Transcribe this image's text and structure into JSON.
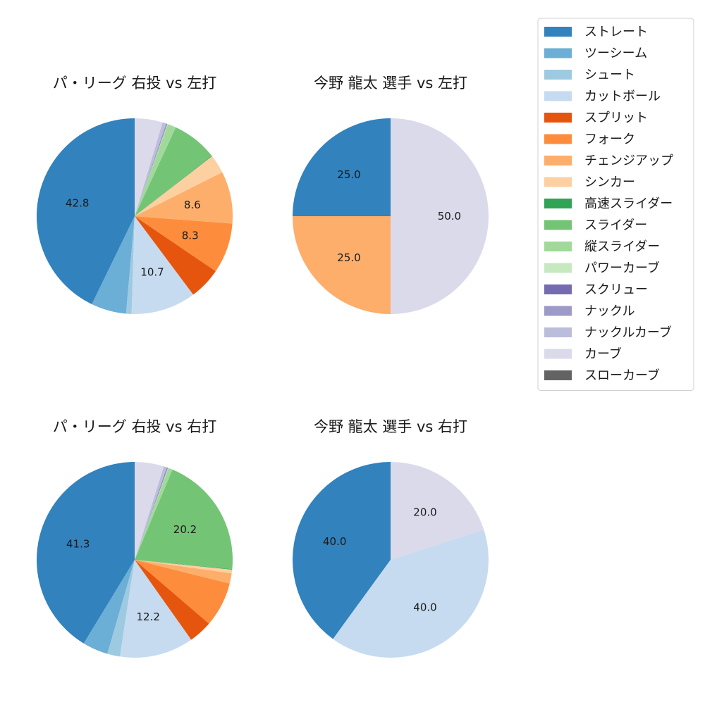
{
  "chart_data": [
    {
      "type": "pie",
      "title": "パ・リーグ 右投 vs 左打",
      "slices": [
        {
          "name": "ストレート",
          "value": 42.8,
          "label": "42.8"
        },
        {
          "name": "ツーシーム",
          "value": 5.8,
          "label": ""
        },
        {
          "name": "シュート",
          "value": 0.9,
          "label": ""
        },
        {
          "name": "カットボール",
          "value": 10.7,
          "label": "10.7"
        },
        {
          "name": "スプリット",
          "value": 5.3,
          "label": ""
        },
        {
          "name": "フォーク",
          "value": 8.3,
          "label": "8.3"
        },
        {
          "name": "チェンジアップ",
          "value": 8.6,
          "label": "8.6"
        },
        {
          "name": "シンカー",
          "value": 3.1,
          "label": ""
        },
        {
          "name": "高速スライダー",
          "value": 0.1,
          "label": ""
        },
        {
          "name": "スライダー",
          "value": 7.5,
          "label": ""
        },
        {
          "name": "縦スライダー",
          "value": 1.4,
          "label": ""
        },
        {
          "name": "パワーカーブ",
          "value": 0.1,
          "label": ""
        },
        {
          "name": "スクリュー",
          "value": 0.1,
          "label": ""
        },
        {
          "name": "ナックル",
          "value": 0.1,
          "label": ""
        },
        {
          "name": "ナックルカーブ",
          "value": 0.6,
          "label": ""
        },
        {
          "name": "カーブ",
          "value": 4.6,
          "label": ""
        }
      ]
    },
    {
      "type": "pie",
      "title": "今野 龍太 選手 vs 左打",
      "slices": [
        {
          "name": "ストレート",
          "value": 25.0,
          "label": "25.0"
        },
        {
          "name": "チェンジアップ",
          "value": 25.0,
          "label": "25.0"
        },
        {
          "name": "カーブ",
          "value": 50.0,
          "label": "50.0"
        }
      ]
    },
    {
      "type": "pie",
      "title": "パ・リーグ 右投 vs 右打",
      "slices": [
        {
          "name": "ストレート",
          "value": 41.3,
          "label": "41.3"
        },
        {
          "name": "ツーシーム",
          "value": 4.2,
          "label": ""
        },
        {
          "name": "シュート",
          "value": 2.1,
          "label": ""
        },
        {
          "name": "カットボール",
          "value": 12.2,
          "label": "12.2"
        },
        {
          "name": "スプリット",
          "value": 3.9,
          "label": ""
        },
        {
          "name": "フォーク",
          "value": 7.4,
          "label": ""
        },
        {
          "name": "チェンジアップ",
          "value": 1.7,
          "label": ""
        },
        {
          "name": "シンカー",
          "value": 0.6,
          "label": ""
        },
        {
          "name": "高速スライダー",
          "value": 0.1,
          "label": ""
        },
        {
          "name": "スライダー",
          "value": 20.2,
          "label": "20.2"
        },
        {
          "name": "縦スライダー",
          "value": 0.7,
          "label": ""
        },
        {
          "name": "パワーカーブ",
          "value": 0.1,
          "label": ""
        },
        {
          "name": "スクリュー",
          "value": 0.1,
          "label": ""
        },
        {
          "name": "ナックル",
          "value": 0.1,
          "label": ""
        },
        {
          "name": "ナックルカーブ",
          "value": 0.5,
          "label": ""
        },
        {
          "name": "カーブ",
          "value": 4.8,
          "label": ""
        }
      ]
    },
    {
      "type": "pie",
      "title": "今野 龍太 選手 vs 右打",
      "slices": [
        {
          "name": "ストレート",
          "value": 40.0,
          "label": "40.0"
        },
        {
          "name": "カットボール",
          "value": 40.0,
          "label": "40.0"
        },
        {
          "name": "カーブ",
          "value": 20.0,
          "label": "20.0"
        }
      ]
    }
  ],
  "legend": {
    "placement": "top-right",
    "entries": [
      {
        "name": "ストレート",
        "color": "#3182bd"
      },
      {
        "name": "ツーシーム",
        "color": "#6baed6"
      },
      {
        "name": "シュート",
        "color": "#9ecae1"
      },
      {
        "name": "カットボール",
        "color": "#c6dbef"
      },
      {
        "name": "スプリット",
        "color": "#e6550d"
      },
      {
        "name": "フォーク",
        "color": "#fd8d3c"
      },
      {
        "name": "チェンジアップ",
        "color": "#fdae6b"
      },
      {
        "name": "シンカー",
        "color": "#fdd0a2"
      },
      {
        "name": "高速スライダー",
        "color": "#31a354"
      },
      {
        "name": "スライダー",
        "color": "#74c476"
      },
      {
        "name": "縦スライダー",
        "color": "#a1d99b"
      },
      {
        "name": "パワーカーブ",
        "color": "#c7e9c0"
      },
      {
        "name": "スクリュー",
        "color": "#756bb1"
      },
      {
        "name": "ナックル",
        "color": "#9e9ac8"
      },
      {
        "name": "ナックルカーブ",
        "color": "#bcbddc"
      },
      {
        "name": "カーブ",
        "color": "#dadaeb"
      },
      {
        "name": "スローカーブ",
        "color": "#636363"
      }
    ]
  }
}
